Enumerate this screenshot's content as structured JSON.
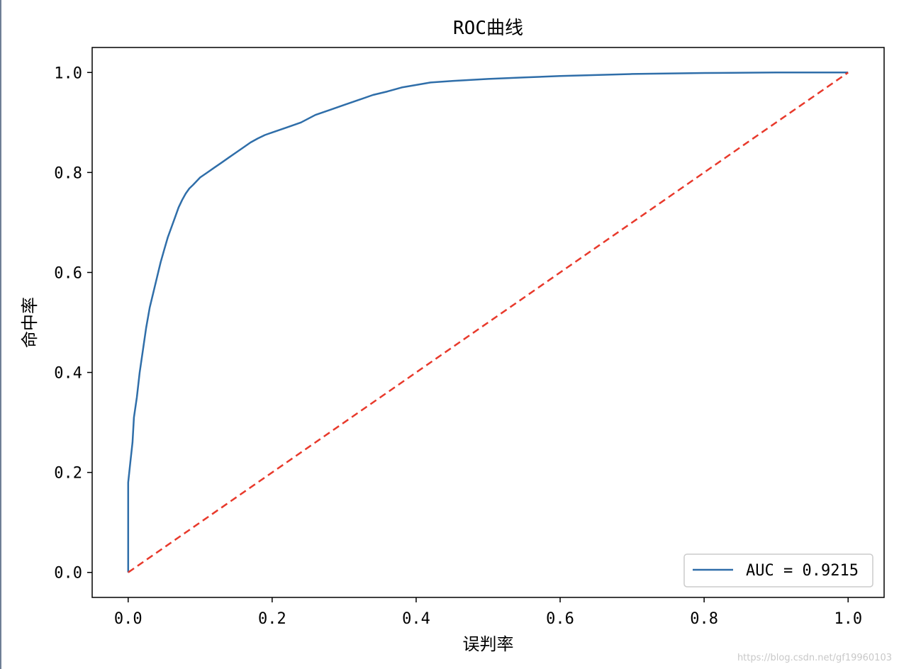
{
  "chart_data": {
    "type": "line",
    "title": "ROC曲线",
    "xlabel": "误判率",
    "ylabel": "命中率",
    "xlim": [
      -0.05,
      1.05
    ],
    "ylim": [
      -0.05,
      1.05
    ],
    "xticks": [
      0.0,
      0.2,
      0.4,
      0.6,
      0.8,
      1.0
    ],
    "yticks": [
      0.0,
      0.2,
      0.4,
      0.6,
      0.8,
      1.0
    ],
    "xtick_labels": [
      "0.0",
      "0.2",
      "0.4",
      "0.6",
      "0.8",
      "1.0"
    ],
    "ytick_labels": [
      "0.0",
      "0.2",
      "0.4",
      "0.6",
      "0.8",
      "1.0"
    ],
    "grid": false,
    "legend_position": "lower-right",
    "series": [
      {
        "name": "AUC = 0.9215",
        "color": "#2f6ea9",
        "style": "solid",
        "x": [
          0.0,
          0.0,
          0.003,
          0.006,
          0.008,
          0.012,
          0.016,
          0.02,
          0.025,
          0.03,
          0.035,
          0.04,
          0.045,
          0.05,
          0.055,
          0.06,
          0.065,
          0.07,
          0.075,
          0.08,
          0.085,
          0.09,
          0.1,
          0.11,
          0.12,
          0.13,
          0.14,
          0.15,
          0.16,
          0.17,
          0.18,
          0.19,
          0.2,
          0.22,
          0.24,
          0.26,
          0.28,
          0.3,
          0.32,
          0.34,
          0.36,
          0.38,
          0.4,
          0.42,
          0.45,
          0.5,
          0.55,
          0.6,
          0.7,
          0.8,
          0.9,
          1.0
        ],
        "y": [
          0.0,
          0.18,
          0.22,
          0.26,
          0.31,
          0.35,
          0.4,
          0.44,
          0.49,
          0.53,
          0.56,
          0.59,
          0.62,
          0.645,
          0.67,
          0.69,
          0.71,
          0.73,
          0.745,
          0.758,
          0.768,
          0.775,
          0.79,
          0.8,
          0.81,
          0.82,
          0.83,
          0.84,
          0.85,
          0.86,
          0.868,
          0.875,
          0.88,
          0.89,
          0.9,
          0.915,
          0.925,
          0.935,
          0.945,
          0.955,
          0.962,
          0.97,
          0.975,
          0.98,
          0.983,
          0.987,
          0.99,
          0.993,
          0.997,
          0.999,
          1.0,
          1.0
        ]
      },
      {
        "name": "",
        "color": "#e8392b",
        "style": "dashed",
        "x": [
          0.0,
          1.0
        ],
        "y": [
          0.0,
          1.0
        ]
      }
    ]
  },
  "watermark": "https://blog.csdn.net/gf19960103"
}
